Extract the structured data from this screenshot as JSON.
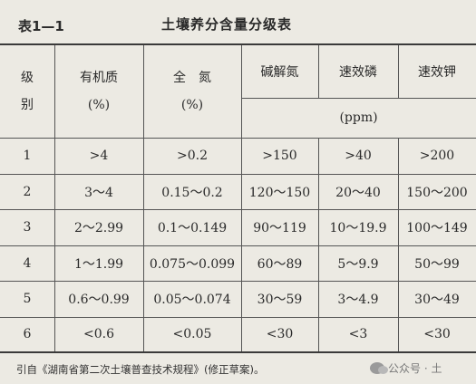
{
  "header": {
    "table_no": "表1—1",
    "title": "土壤养分含量分级表"
  },
  "columns": {
    "level_line1": "级",
    "level_line2": "别",
    "om_line1": "有机质",
    "om_line2": "(%)",
    "tn_line1": "全　氮",
    "tn_line2": "(%)",
    "an": "碱解氮",
    "ap": "速效磷",
    "ak": "速效钾",
    "unit": "(ppm)"
  },
  "rows": [
    {
      "level": "1",
      "om": ">4",
      "tn": ">0.2",
      "an": ">150",
      "ap": ">40",
      "ak": ">200"
    },
    {
      "level": "2",
      "om": "3～4",
      "tn": "0.15～0.2",
      "an": "120～150",
      "ap": "20～40",
      "ak": "150～200"
    },
    {
      "level": "3",
      "om": "2～2.99",
      "tn": "0.1～0.149",
      "an": "90～119",
      "ap": "10～19.9",
      "ak": "100～149"
    },
    {
      "level": "4",
      "om": "1～1.99",
      "tn": "0.075～0.099",
      "an": "60～89",
      "ap": "5～9.9",
      "ak": "50～99"
    },
    {
      "level": "5",
      "om": "0.6～0.99",
      "tn": "0.05～0.074",
      "an": "30～59",
      "ap": "3～4.9",
      "ak": "30～49"
    },
    {
      "level": "6",
      "om": "<0.6",
      "tn": "<0.05",
      "an": "<30",
      "ap": "<3",
      "ak": "<30"
    }
  ],
  "footer": {
    "source": "引自《湖南省第二次土壤普查技术规程》(修正草案)。"
  },
  "watermark": {
    "icon": "wechat-icon",
    "text": "公众号 · 土"
  }
}
